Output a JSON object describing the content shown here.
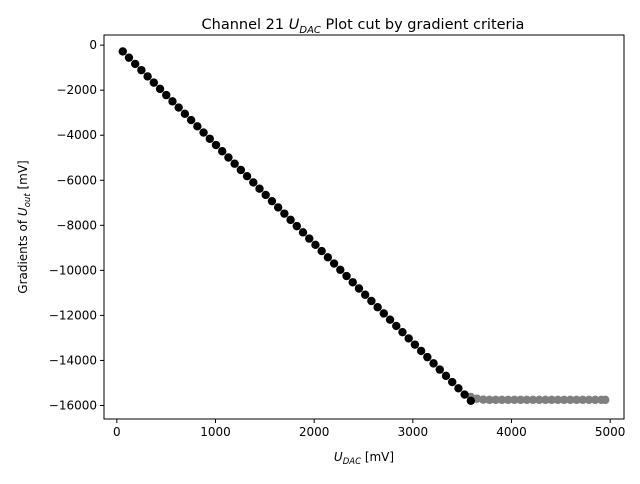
{
  "chart_data": {
    "type": "scatter",
    "title": {
      "prefix": "Channel 21 ",
      "sym": "U",
      "sub": "DAC",
      "suffix": " Plot cut by gradient criteria"
    },
    "xlabel": {
      "sym": "U",
      "sub": "DAC",
      "suffix": " [mV]"
    },
    "ylabel": {
      "prefix": "Gradients of ",
      "sym": "U",
      "sub": "out",
      "suffix": " [mV]"
    },
    "xlim": [
      -130,
      5140
    ],
    "ylim": [
      -16600,
      450
    ],
    "xticks": [
      0,
      1000,
      2000,
      3000,
      4000,
      5000
    ],
    "xtick_labels": [
      "0",
      "1000",
      "2000",
      "3000",
      "4000",
      "5000"
    ],
    "yticks": [
      0,
      -2000,
      -4000,
      -6000,
      -8000,
      -10000,
      -12000,
      -14000,
      -16000
    ],
    "ytick_labels": [
      "0",
      "−2000",
      "−4000",
      "−6000",
      "−8000",
      "−10000",
      "−12000",
      "−14000",
      "−16000"
    ],
    "grid": false,
    "series": [
      {
        "kept": true,
        "color": "#000000",
        "x": [
          60,
          123,
          186,
          249,
          312,
          375,
          438,
          501,
          564,
          627,
          690,
          753,
          816,
          879,
          942,
          1005,
          1068,
          1131,
          1194,
          1257,
          1320,
          1383,
          1446,
          1509,
          1572,
          1635,
          1698,
          1761,
          1824,
          1887,
          1950,
          2013,
          2076,
          2139,
          2202,
          2265,
          2328,
          2391,
          2454,
          2517,
          2580,
          2643,
          2706,
          2769,
          2832,
          2895,
          2958,
          3021,
          3084,
          3147,
          3210,
          3273,
          3336,
          3399,
          3462,
          3525,
          3588
        ],
        "y": [
          -280,
          -557,
          -834,
          -1111,
          -1388,
          -1665,
          -1942,
          -2219,
          -2496,
          -2773,
          -3050,
          -3327,
          -3604,
          -3881,
          -4158,
          -4435,
          -4712,
          -4989,
          -5266,
          -5543,
          -5820,
          -6097,
          -6374,
          -6651,
          -6928,
          -7205,
          -7482,
          -7759,
          -8036,
          -8313,
          -8590,
          -8867,
          -9144,
          -9421,
          -9698,
          -9975,
          -10252,
          -10529,
          -10806,
          -11083,
          -11360,
          -11637,
          -11914,
          -12191,
          -12468,
          -12745,
          -13022,
          -13299,
          -13576,
          -13853,
          -14130,
          -14407,
          -14684,
          -14961,
          -15238,
          -15515,
          -15792
        ]
      },
      {
        "kept": false,
        "color": "#808080",
        "x": [
          3588,
          3651,
          3714,
          3777,
          3840,
          3903,
          3966,
          4029,
          4092,
          4155,
          4218,
          4281,
          4344,
          4407,
          4470,
          4533,
          4596,
          4659,
          4722,
          4785,
          4848,
          4911,
          4950
        ],
        "y": [
          -15620,
          -15700,
          -15740,
          -15750,
          -15750,
          -15750,
          -15750,
          -15750,
          -15750,
          -15750,
          -15750,
          -15750,
          -15750,
          -15750,
          -15750,
          -15750,
          -15750,
          -15750,
          -15750,
          -15750,
          -15750,
          -15750,
          -15750
        ]
      }
    ]
  }
}
